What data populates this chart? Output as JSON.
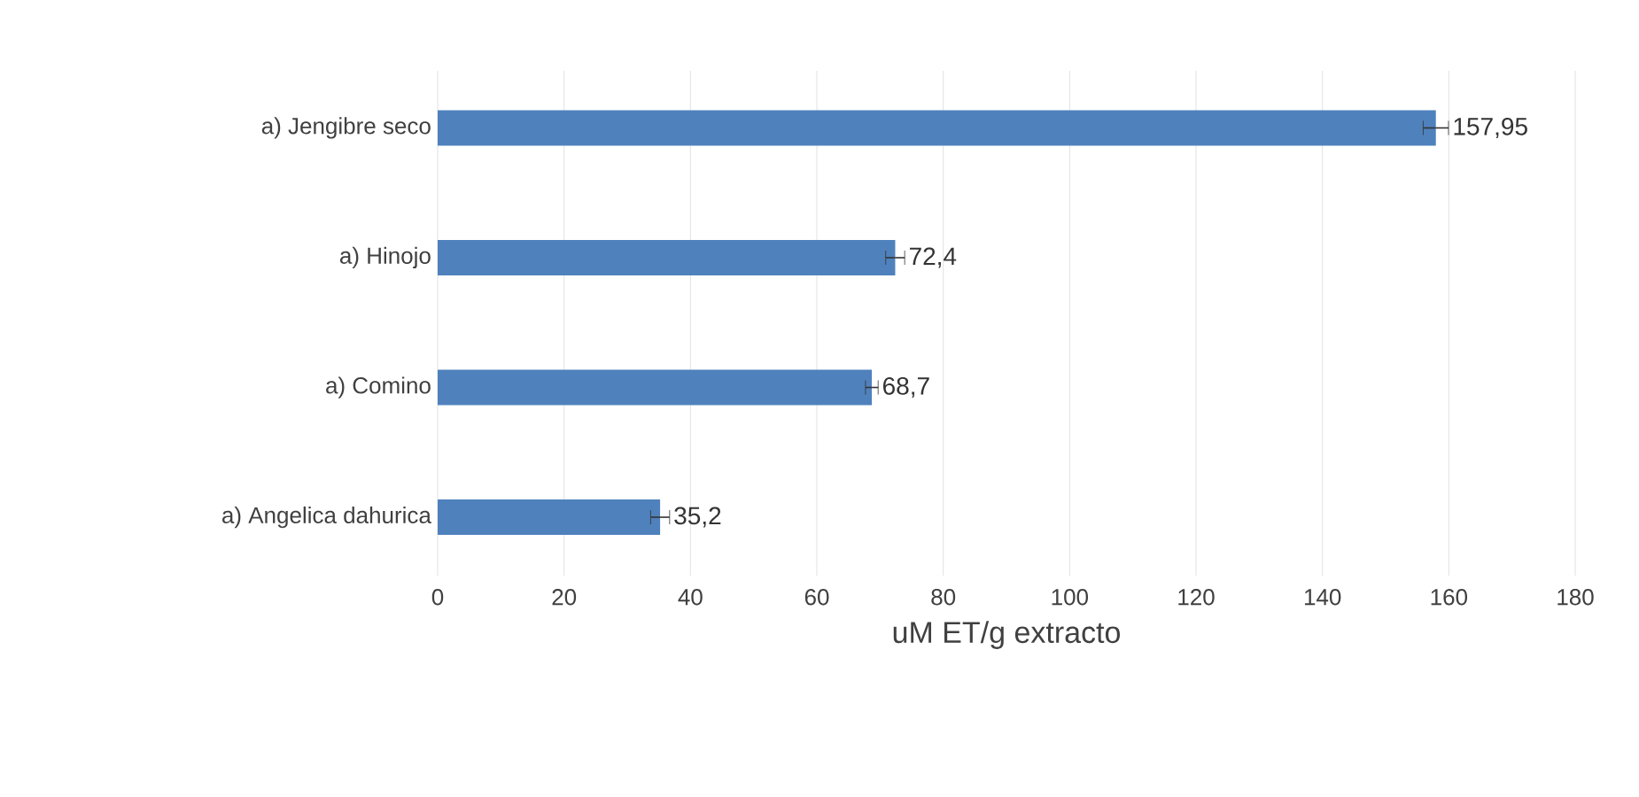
{
  "chart_data": {
    "type": "bar",
    "orientation": "horizontal",
    "xlabel": "uM ET/g extracto",
    "categories": [
      "a) Jengibre seco",
      "a) Hinojo",
      "a) Comino",
      "a) Angelica dahurica"
    ],
    "values": [
      157.95,
      72.4,
      68.7,
      35.2
    ],
    "errors": [
      2,
      1.5,
      1,
      1.5
    ],
    "value_labels": [
      "157,95",
      "72,4",
      "68,7",
      "35,2"
    ],
    "color": "#4f81bd",
    "xlim": [
      0,
      180
    ],
    "xticks": [
      0,
      20,
      40,
      60,
      80,
      100,
      120,
      140,
      160,
      180
    ],
    "grid": "x"
  }
}
